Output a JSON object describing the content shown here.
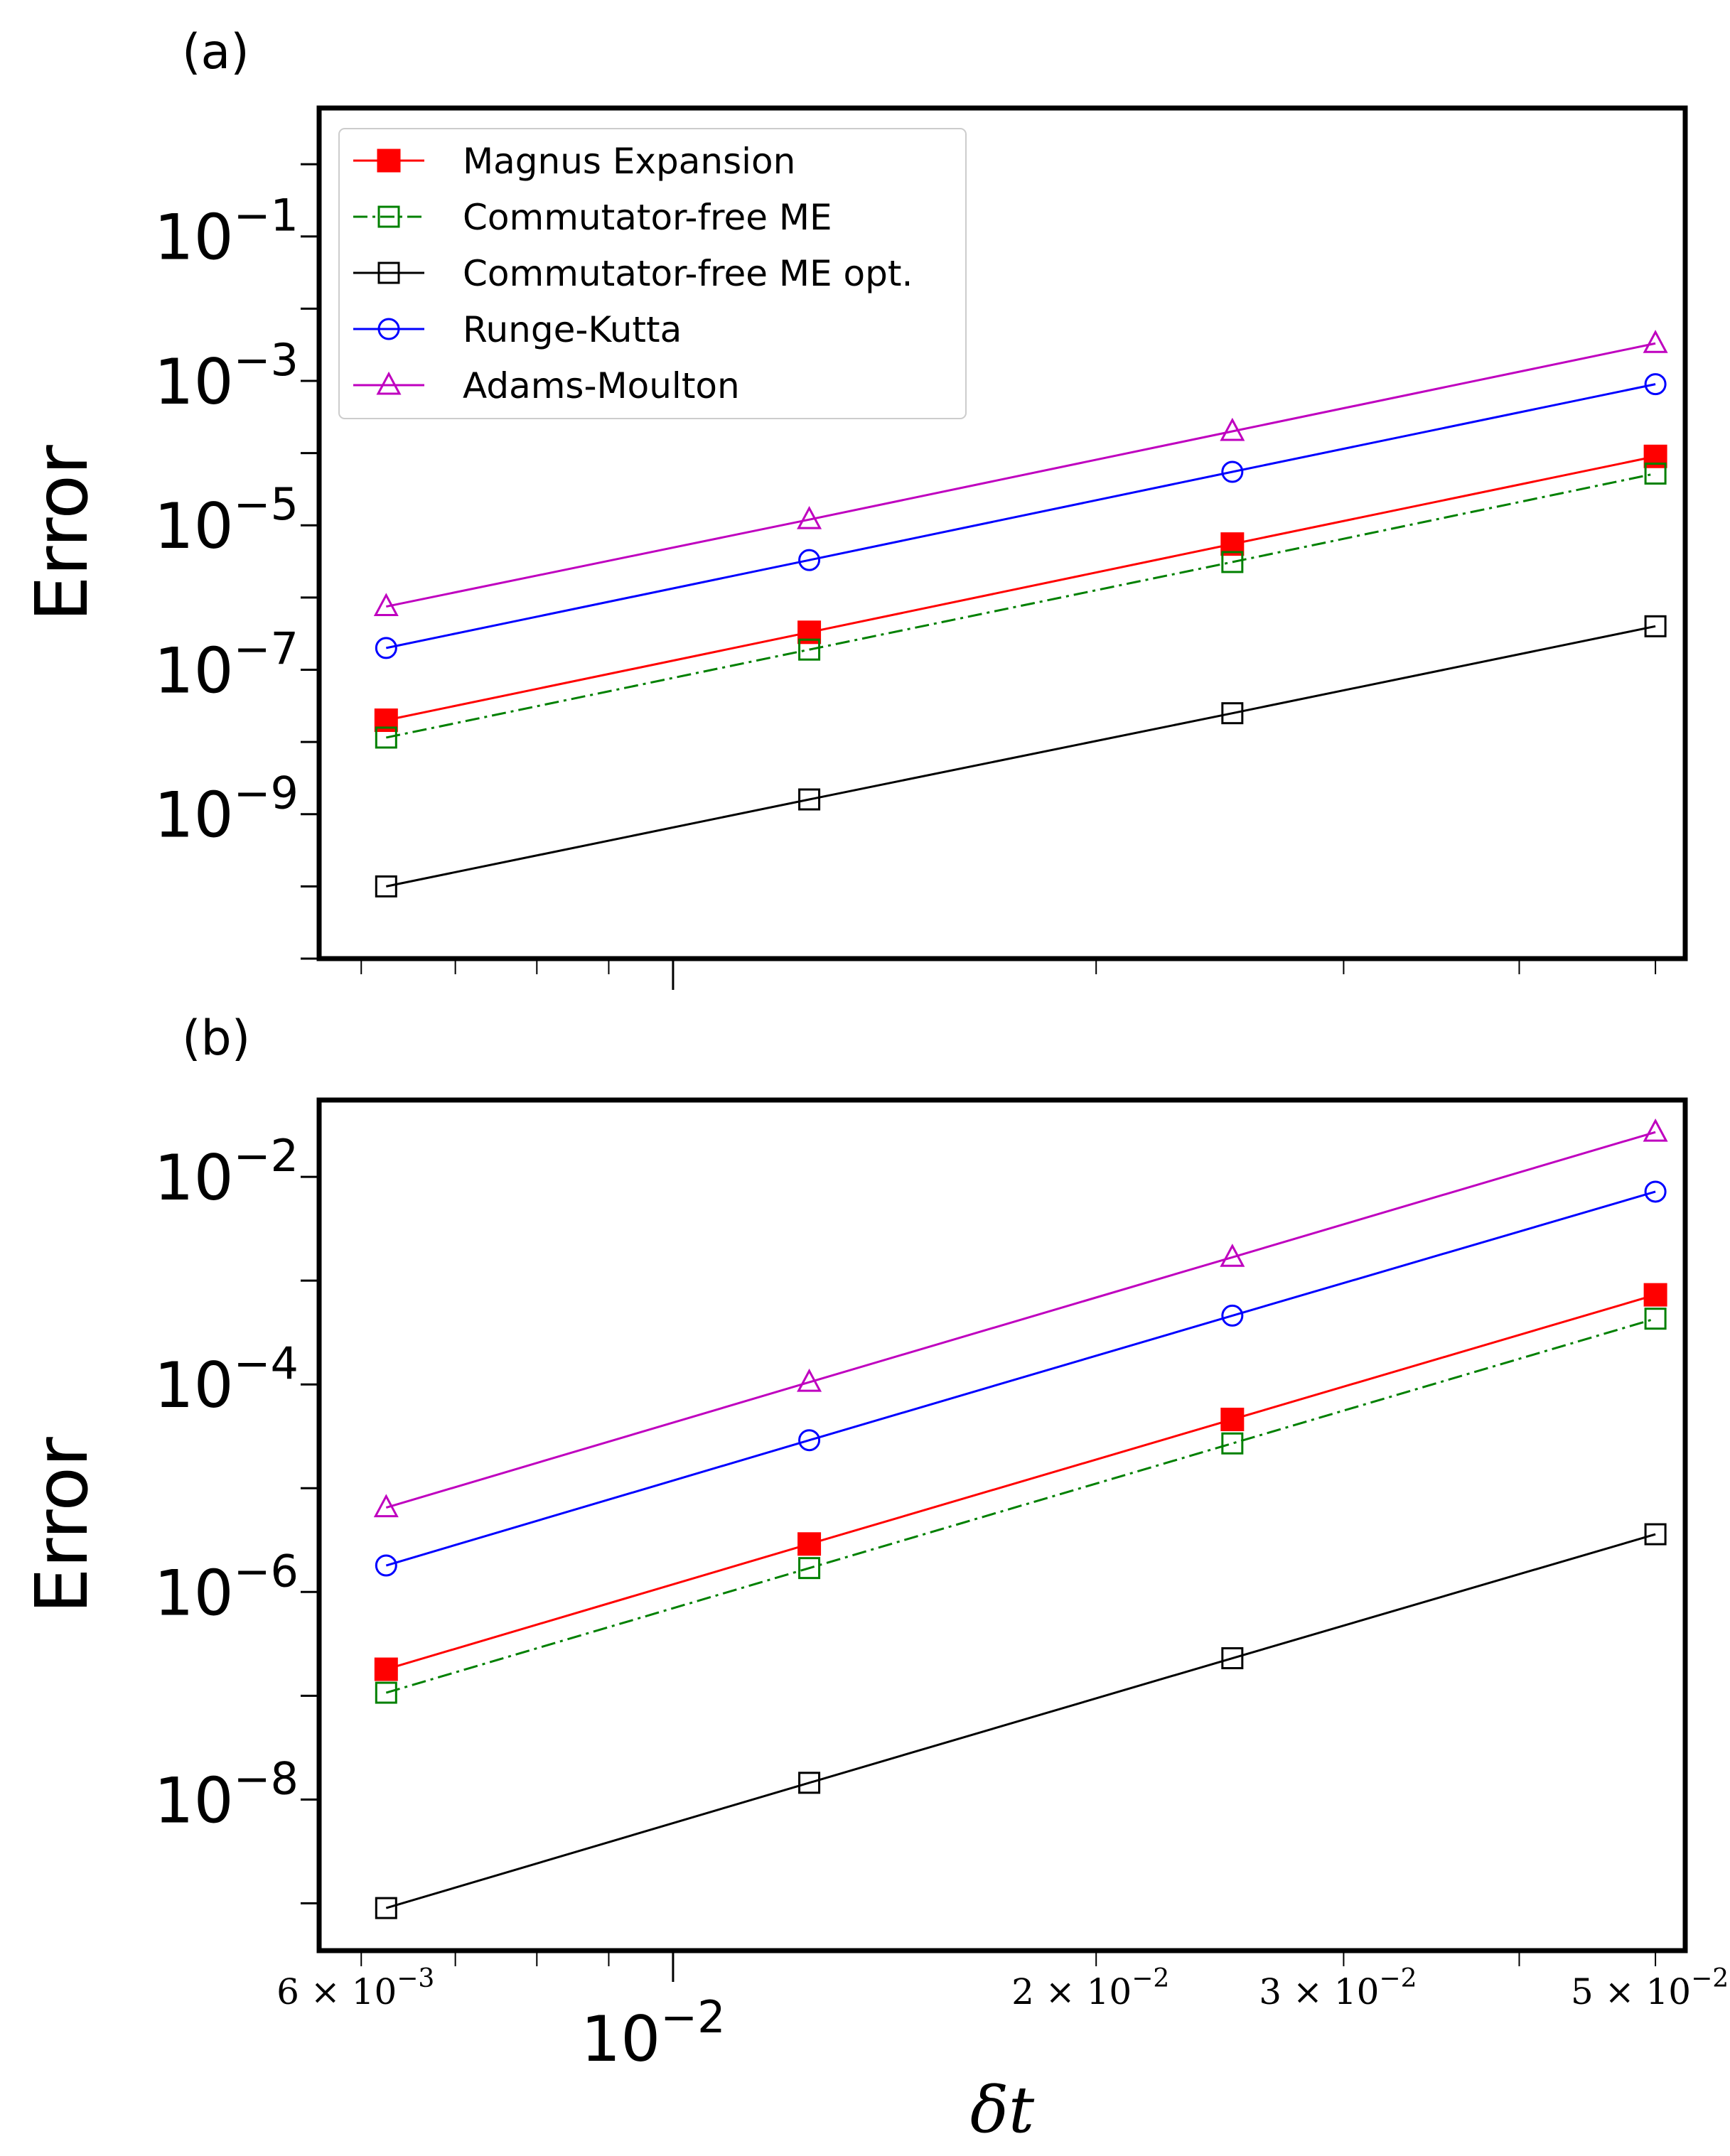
{
  "chart_data": [
    {
      "type": "line",
      "panel_label": "(a)",
      "xscale": "log",
      "yscale": "log",
      "xlabel": "δt",
      "ylabel": "Error",
      "xlim": [
        0.0056,
        0.0525
      ],
      "ylim": [
        1e-11,
        6
      ],
      "x": [
        0.00625,
        0.0125,
        0.025,
        0.05
      ],
      "yticks": [
        {
          "value": 0.1,
          "base": "10",
          "exp": "−1"
        },
        {
          "value": 0.001,
          "base": "10",
          "exp": "−3"
        },
        {
          "value": 1e-05,
          "base": "10",
          "exp": "−5"
        },
        {
          "value": 1e-07,
          "base": "10",
          "exp": "−7"
        },
        {
          "value": 1e-09,
          "base": "10",
          "exp": "−9"
        }
      ],
      "legend": "top-left",
      "series": [
        {
          "name": "Magnus Expansion",
          "color": "#ff0000",
          "marker": "square-filled",
          "linestyle": "solid",
          "values": [
            2e-08,
            3.3e-07,
            5.5e-06,
            9e-05
          ]
        },
        {
          "name": "Commutator-free ME",
          "color": "#008000",
          "marker": "square-open",
          "linestyle": "dashdot",
          "values": [
            1.15e-08,
            1.9e-07,
            3.1e-06,
            5.2e-05
          ]
        },
        {
          "name": "Commutator-free ME opt.",
          "color": "#000000",
          "marker": "square-open",
          "linestyle": "solid",
          "values": [
            1e-10,
            1.6e-09,
            2.5e-08,
            4e-07
          ]
        },
        {
          "name": "Runge-Kutta",
          "color": "#0000ff",
          "marker": "circle-open",
          "linestyle": "solid",
          "values": [
            2e-07,
            3.3e-06,
            5.5e-05,
            0.0009
          ]
        },
        {
          "name": "Adams-Moulton",
          "color": "#bf00bf",
          "marker": "triangle-open",
          "linestyle": "solid",
          "values": [
            7.5e-07,
            1.2e-05,
            0.0002,
            0.0033
          ]
        }
      ]
    },
    {
      "type": "line",
      "panel_label": "(b)",
      "xscale": "log",
      "yscale": "log",
      "xlabel": "δt",
      "ylabel": "Error",
      "xlim": [
        0.0056,
        0.0525
      ],
      "ylim": [
        3.5e-10,
        0.055
      ],
      "x": [
        0.00625,
        0.0125,
        0.025,
        0.05
      ],
      "yticks": [
        {
          "value": 0.01,
          "base": "10",
          "exp": "−2"
        },
        {
          "value": 0.0001,
          "base": "10",
          "exp": "−4"
        },
        {
          "value": 1e-06,
          "base": "10",
          "exp": "−6"
        },
        {
          "value": 1e-08,
          "base": "10",
          "exp": "−8"
        }
      ],
      "xticks_major": [
        {
          "value": 0.01,
          "base": "10",
          "exp": "−2"
        }
      ],
      "xticks_minor_labeled": [
        {
          "value": 0.006,
          "mant": "6",
          "exp": "−3"
        },
        {
          "value": 0.02,
          "mant": "2",
          "exp": "−2"
        },
        {
          "value": 0.03,
          "mant": "3",
          "exp": "−2"
        },
        {
          "value": 0.05,
          "mant": "5",
          "exp": "−2"
        }
      ],
      "series": [
        {
          "name": "Magnus Expansion",
          "color": "#ff0000",
          "marker": "square-filled",
          "linestyle": "solid",
          "values": [
            1.8e-07,
            2.9e-06,
            4.6e-05,
            0.00073
          ]
        },
        {
          "name": "Commutator-free ME",
          "color": "#008000",
          "marker": "square-open",
          "linestyle": "dashdot",
          "values": [
            1.07e-07,
            1.7e-06,
            2.7e-05,
            0.00043
          ]
        },
        {
          "name": "Commutator-free ME opt.",
          "color": "#000000",
          "marker": "square-open",
          "linestyle": "solid",
          "values": [
            9e-10,
            1.45e-08,
            2.3e-07,
            3.6e-06
          ]
        },
        {
          "name": "Runge-Kutta",
          "color": "#0000ff",
          "marker": "circle-open",
          "linestyle": "solid",
          "values": [
            1.8e-06,
            2.9e-05,
            0.00046,
            0.0072
          ]
        },
        {
          "name": "Adams-Moulton",
          "color": "#bf00bf",
          "marker": "triangle-open",
          "linestyle": "solid",
          "values": [
            6.5e-06,
            0.000105,
            0.00168,
            0.027
          ]
        }
      ]
    }
  ]
}
